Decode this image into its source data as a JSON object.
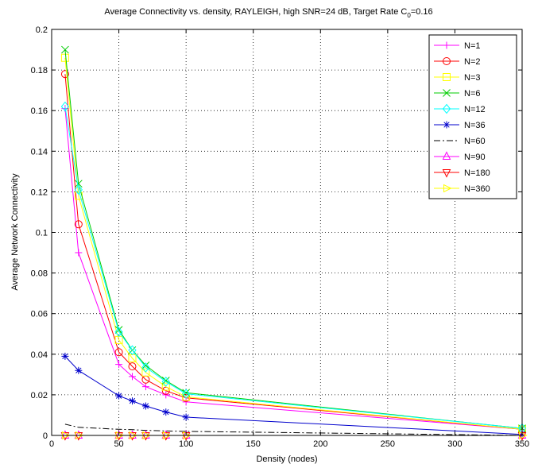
{
  "chart_data": {
    "type": "line",
    "title_main": "Average Connectivity vs. density, RAYLEIGH, high SNR=24 dB, Target Rate C",
    "title_sub": "0",
    "title_tail": "=0.16",
    "xlabel": "Density (nodes)",
    "ylabel": "Average Network Connectivity",
    "xlim": [
      0,
      350
    ],
    "ylim": [
      0,
      0.2
    ],
    "xticks": [
      0,
      50,
      100,
      150,
      200,
      250,
      300,
      350
    ],
    "yticks": [
      0,
      0.02,
      0.04,
      0.06,
      0.08,
      0.1,
      0.12,
      0.14,
      0.16,
      0.18,
      0.2
    ],
    "xtick_labels": [
      "0",
      "50",
      "100",
      "150",
      "200",
      "250",
      "300",
      "350"
    ],
    "ytick_labels": [
      "0",
      "0.02",
      "0.04",
      "0.06",
      "0.08",
      "0.1",
      "0.12",
      "0.14",
      "0.16",
      "0.18",
      "0.2"
    ],
    "grid": true,
    "legend_position": "top-right",
    "x": [
      10,
      20,
      50,
      60,
      70,
      85,
      100,
      350
    ],
    "series": [
      {
        "name": "N=1",
        "color": "#ff00ff",
        "marker": "plus",
        "dash": "solid",
        "values": [
          0.161,
          0.09,
          0.035,
          0.029,
          0.024,
          0.02,
          0.0165,
          0.003
        ]
      },
      {
        "name": "N=2",
        "color": "#ff0000",
        "marker": "circle",
        "dash": "solid",
        "values": [
          0.178,
          0.104,
          0.041,
          0.034,
          0.0275,
          0.022,
          0.0185,
          0.003
        ]
      },
      {
        "name": "N=3",
        "color": "#ffff00",
        "marker": "square",
        "dash": "solid",
        "values": [
          0.186,
          0.118,
          0.047,
          0.038,
          0.031,
          0.024,
          0.019,
          0.003
        ]
      },
      {
        "name": "N=6",
        "color": "#00cc00",
        "marker": "x",
        "dash": "solid",
        "values": [
          0.19,
          0.124,
          0.052,
          0.042,
          0.0345,
          0.027,
          0.021,
          0.0035
        ]
      },
      {
        "name": "N=12",
        "color": "#00ffff",
        "marker": "diamond",
        "dash": "solid",
        "values": [
          0.162,
          0.121,
          0.051,
          0.042,
          0.0335,
          0.0265,
          0.0205,
          0.0035
        ]
      },
      {
        "name": "N=36",
        "color": "#0000cc",
        "marker": "star",
        "dash": "solid",
        "values": [
          0.039,
          0.032,
          0.0195,
          0.017,
          0.0145,
          0.0115,
          0.009,
          0.0005
        ]
      },
      {
        "name": "N=60",
        "color": "#000000",
        "marker": "none",
        "dash": "dashdot",
        "values": [
          0.0055,
          0.004,
          0.003,
          0.0028,
          0.0025,
          0.0022,
          0.002,
          0.0
        ]
      },
      {
        "name": "N=90",
        "color": "#ff00ff",
        "marker": "triangle-up",
        "dash": "solid",
        "values": [
          0,
          0,
          0,
          0,
          0,
          0,
          0,
          0
        ]
      },
      {
        "name": "N=180",
        "color": "#ff0000",
        "marker": "triangle-down",
        "dash": "solid",
        "values": [
          0,
          0,
          0,
          0,
          0,
          0,
          0,
          0
        ]
      },
      {
        "name": "N=360",
        "color": "#ffff00",
        "marker": "triangle-right",
        "dash": "solid",
        "values": [
          0,
          0,
          0,
          0,
          0,
          0,
          0,
          0
        ]
      }
    ]
  }
}
